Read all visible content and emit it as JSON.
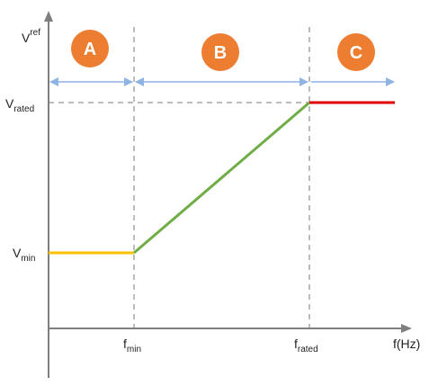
{
  "axes": {
    "y_label_main": "V",
    "y_label_sup": "ref",
    "x_label": "f(Hz)"
  },
  "ticks": {
    "v_rated_main": "V",
    "v_rated_sub": "rated",
    "v_min_main": "V",
    "v_min_sub": "min",
    "f_min_main": "f",
    "f_min_sub": "min",
    "f_rated_main": "f",
    "f_rated_sub": "rated"
  },
  "zones": [
    {
      "letter": "A"
    },
    {
      "letter": "B"
    },
    {
      "letter": "C"
    }
  ],
  "colors": {
    "axis": "#7f7f7f",
    "dashed_guide": "#a6a6a6",
    "zone_arrow": "#8fb4e3",
    "zone_circle": "#ed7d31",
    "segment_a": "#ffc000",
    "segment_b": "#70ad47",
    "segment_c": "#e00000"
  }
}
